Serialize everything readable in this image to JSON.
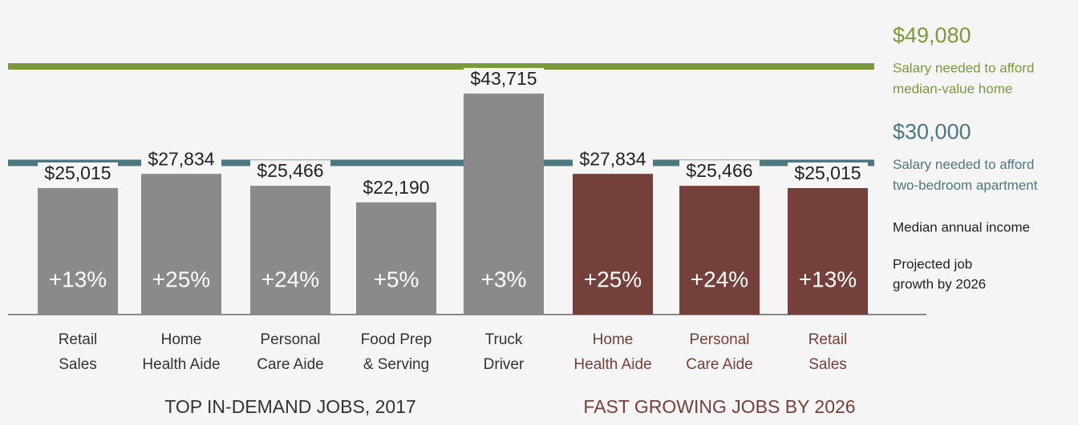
{
  "chart_data": [
    {
      "type": "bar",
      "title": "TOP IN-DEMAND JOBS, 2017",
      "color": "#898a8c",
      "label_color": "#333333",
      "categories": [
        [
          "Retail",
          "Sales"
        ],
        [
          "Home",
          "Health Aide"
        ],
        [
          "Personal",
          "Care Aide"
        ],
        [
          "Food Prep",
          "& Serving"
        ],
        [
          "Truck",
          "Driver"
        ]
      ],
      "values": [
        25015,
        27834,
        25466,
        22190,
        43715
      ],
      "value_labels": [
        "$25,015",
        "$27,834",
        "$25,466",
        "$22,190",
        "$43,715"
      ],
      "growth": [
        13,
        25,
        24,
        5,
        3
      ],
      "growth_labels": [
        "+13%",
        "+25%",
        "+24%",
        "+5%",
        "+3%"
      ]
    },
    {
      "type": "bar",
      "title": "FAST GROWING JOBS BY 2026",
      "color": "#76403a",
      "label_color": "#76403a",
      "categories": [
        [
          "Home",
          "Health Aide"
        ],
        [
          "Personal",
          "Care Aide"
        ],
        [
          "Retail",
          "Sales"
        ]
      ],
      "values": [
        27834,
        25466,
        25015
      ],
      "value_labels": [
        "$27,834",
        "$25,466",
        "$25,015"
      ],
      "growth": [
        25,
        24,
        13
      ],
      "growth_labels": [
        "+25%",
        "+24%",
        "+13%"
      ]
    }
  ],
  "reference_lines": [
    {
      "value": 49080,
      "label": "$49,080",
      "note": [
        "Salary needed to afford",
        "median-value home"
      ],
      "color": "#7a9a3a"
    },
    {
      "value": 30000,
      "label": "$30,000",
      "note": [
        "Salary needed to afford",
        "two-bedroom apartment"
      ],
      "color": "#4e7880"
    }
  ],
  "legend_notes": [
    [
      "Median annual income"
    ],
    [
      "Projected job",
      "growth by 2026"
    ]
  ]
}
